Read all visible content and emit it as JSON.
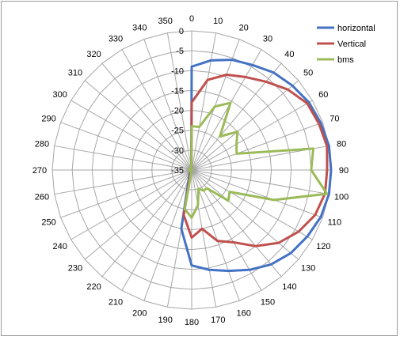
{
  "chart_data": {
    "type": "radar",
    "title": "",
    "angle_labels": [
      "0",
      "10",
      "20",
      "30",
      "40",
      "50",
      "60",
      "70",
      "80",
      "90",
      "100",
      "110",
      "120",
      "130",
      "140",
      "150",
      "160",
      "170",
      "180",
      "190",
      "200",
      "210",
      "220",
      "230",
      "240",
      "250",
      "260",
      "270",
      "280",
      "290",
      "300",
      "310",
      "320",
      "330",
      "340",
      "350"
    ],
    "radial_tick_labels": [
      "0",
      "-5",
      "-10",
      "-15",
      "-20",
      "-25",
      "-30",
      "-35"
    ],
    "rlim": [
      -35,
      0
    ],
    "grid": true,
    "legend_position": "top-right",
    "series": [
      {
        "name": "horizontal",
        "color": "#4472C4",
        "values": [
          -9,
          -7,
          -5.5,
          -4.5,
          -3,
          -2,
          -1,
          -0.5,
          0,
          0,
          0,
          -0.5,
          -1.5,
          -2.5,
          -4,
          -6,
          -8,
          -9.5,
          -11,
          -20,
          -33,
          -34,
          -34.5,
          -34.5,
          -34.5,
          -34.5,
          -34.5,
          -34.5,
          -34.5,
          -34.5,
          -34.5,
          -34.5,
          -34.5,
          -34.5,
          -34.5,
          -34.5
        ]
      },
      {
        "name": "Vertical",
        "color": "#C0504D",
        "values": [
          -18,
          -12,
          -9.5,
          -8,
          -6,
          -3.5,
          -1.5,
          -1,
          -0.5,
          -1,
          -1,
          -2,
          -4,
          -6.5,
          -10,
          -14,
          -16,
          -20,
          -18,
          -23.5,
          -34,
          -34.5,
          -34.5,
          -34.5,
          -34.5,
          -34.5,
          -34.5,
          -34.5,
          -34.5,
          -34.5,
          -34.5,
          -34.5,
          -34.5,
          -34.5,
          -34.5,
          -34.5
        ]
      },
      {
        "name": "bms",
        "color": "#9BBB59",
        "values": [
          -24,
          -24,
          -18,
          -15.5,
          -24,
          -20,
          -22,
          -23,
          -4,
          -5,
          -0.5,
          -13,
          -24,
          -23,
          -29,
          -29,
          -30,
          -26,
          -23,
          -25,
          -35,
          -34.5,
          -34.5,
          -34.5,
          -34.5,
          -34.5,
          -34.5,
          -34.5,
          -34.5,
          -34.5,
          -34.5,
          -34.5,
          -34.5,
          -34.5,
          -34.5,
          -34.5
        ]
      }
    ]
  }
}
